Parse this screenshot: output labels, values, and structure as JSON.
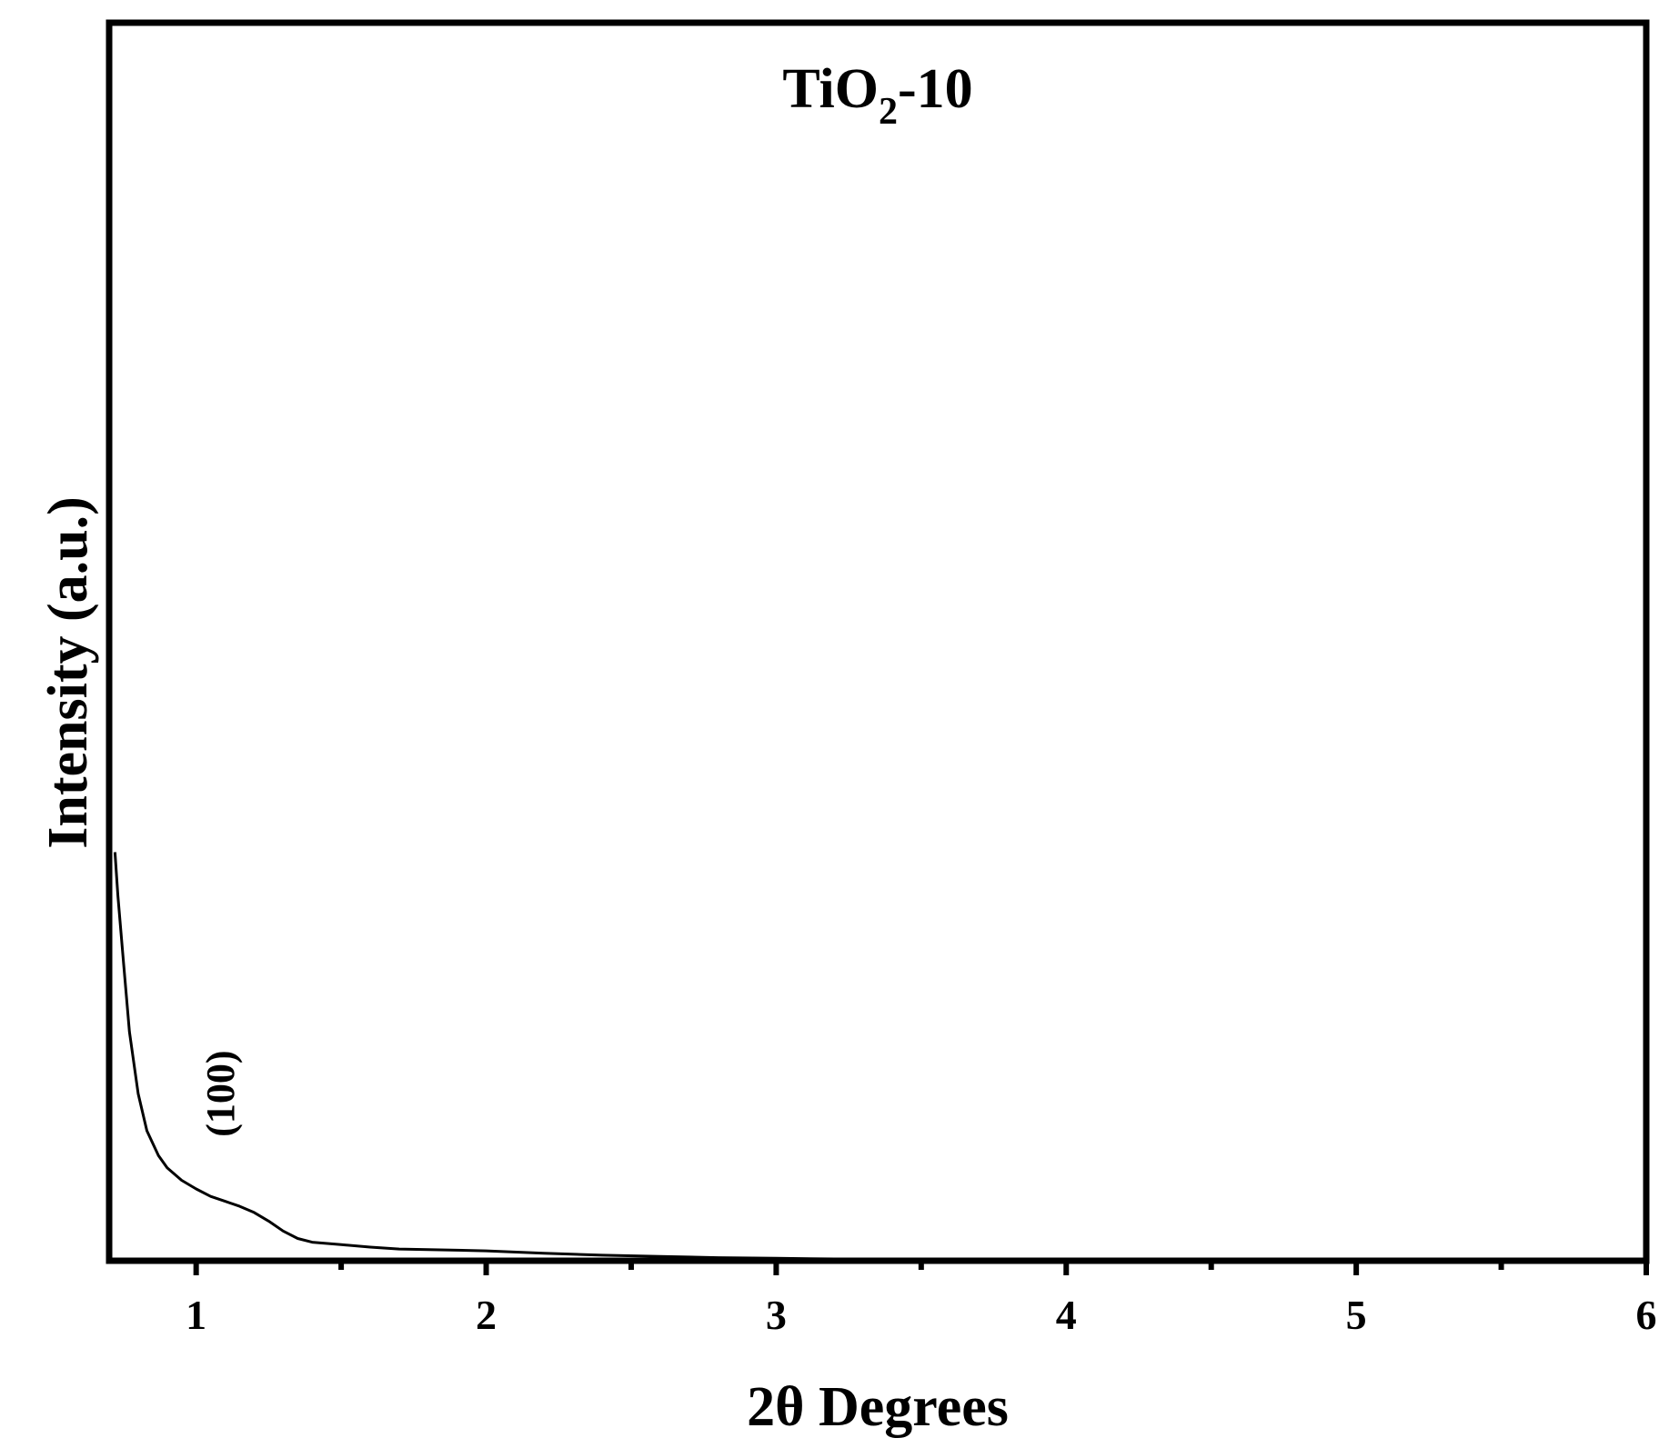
{
  "chart_data": {
    "type": "line",
    "title": {
      "main": "TiO",
      "sub": "2",
      "rest": "-10"
    },
    "xlabel": "2θ Degrees",
    "ylabel": "Intensity (a.u.)",
    "xlim": [
      0.7,
      6
    ],
    "ylim": [
      0,
      100
    ],
    "x_ticks": [
      1,
      2,
      3,
      4,
      5,
      6
    ],
    "x_tick_labels": [
      "1",
      "2",
      "3",
      "4",
      "5",
      "6"
    ],
    "x_minor_ticks": [
      1.5,
      2.5,
      3.5,
      4.5,
      5.5
    ],
    "y_ticks_shown": false,
    "grid": false,
    "line_color": "#000000",
    "annotations": [
      {
        "text": "(100)",
        "x": 1.13,
        "y": 13.5,
        "rotation": -90
      }
    ],
    "series": [
      {
        "x": [
          0.72,
          0.73,
          0.75,
          0.77,
          0.8,
          0.83,
          0.87,
          0.9,
          0.95,
          1.0,
          1.05,
          1.1,
          1.15,
          1.2,
          1.25,
          1.3,
          1.35,
          1.4,
          1.5,
          1.6,
          1.7,
          1.8,
          2.0,
          2.2,
          2.4,
          2.6,
          2.8,
          3.0,
          3.2,
          3.5,
          4.0,
          4.5,
          5.0,
          5.5,
          6.0
        ],
        "y": [
          33.0,
          29.5,
          24.0,
          18.5,
          13.5,
          10.5,
          8.5,
          7.5,
          6.5,
          5.8,
          5.2,
          4.8,
          4.4,
          3.9,
          3.2,
          2.4,
          1.8,
          1.5,
          1.3,
          1.1,
          0.95,
          0.9,
          0.8,
          0.6,
          0.45,
          0.35,
          0.25,
          0.2,
          0.15,
          0.1,
          0.05,
          0.02,
          0.01,
          0.0,
          0.0
        ]
      }
    ]
  }
}
